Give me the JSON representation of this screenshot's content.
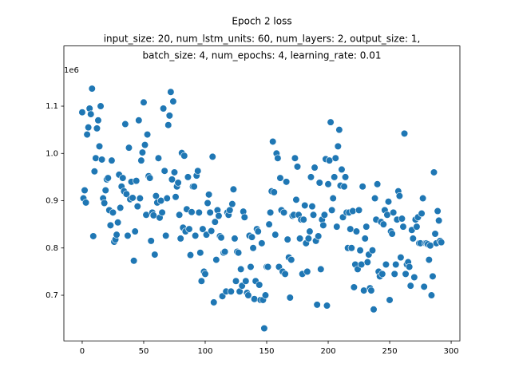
{
  "chart_data": {
    "type": "scatter",
    "title": "Epoch 2 loss",
    "subtitle": [
      "input_size: 20, num_lstm_units: 60, num_layers: 2, output_size: 1,",
      "batch_size: 4, num_epochs: 4, learning_rate: 0.01"
    ],
    "y_offset_label": "1e6",
    "color": "#1f77b4",
    "xlim": [
      -14.9,
      307.1
    ],
    "ylim": [
      0.6035,
      1.2273
    ],
    "xticks": [
      0,
      50,
      100,
      150,
      200,
      250,
      300
    ],
    "yticks": [
      0.7,
      0.8,
      0.9,
      {
        "value": 1,
        "label": "1.0"
      },
      1.1
    ],
    "x": [
      0,
      1,
      2,
      3,
      4,
      5,
      6,
      7,
      8,
      9,
      10,
      11,
      12,
      13,
      14,
      15,
      16,
      17,
      18,
      19,
      20,
      21,
      22,
      23,
      24,
      25,
      26,
      27,
      28,
      29,
      30,
      31,
      32,
      33,
      34,
      35,
      36,
      37,
      38,
      39,
      40,
      41,
      42,
      43,
      44,
      45,
      46,
      47,
      48,
      49,
      50,
      51,
      52,
      53,
      54,
      55,
      56,
      57,
      58,
      59,
      60,
      61,
      62,
      63,
      64,
      65,
      66,
      67,
      68,
      69,
      70,
      71,
      72,
      73,
      74,
      75,
      76,
      77,
      78,
      79,
      80,
      81,
      82,
      83,
      84,
      85,
      86,
      87,
      88,
      89,
      90,
      91,
      92,
      93,
      94,
      95,
      96,
      97,
      98,
      99,
      100,
      101,
      102,
      103,
      104,
      105,
      106,
      107,
      108,
      109,
      110,
      111,
      112,
      113,
      114,
      115,
      116,
      117,
      118,
      119,
      120,
      121,
      122,
      123,
      124,
      125,
      126,
      127,
      128,
      129,
      130,
      131,
      132,
      133,
      134,
      135,
      136,
      137,
      138,
      139,
      140,
      141,
      142,
      143,
      144,
      145,
      146,
      147,
      148,
      149,
      150,
      151,
      152,
      153,
      154,
      155,
      156,
      157,
      158,
      159,
      160,
      161,
      162,
      163,
      164,
      165,
      166,
      167,
      168,
      169,
      170,
      171,
      172,
      173,
      174,
      175,
      176,
      177,
      178,
      179,
      180,
      181,
      182,
      183,
      184,
      185,
      186,
      187,
      188,
      189,
      190,
      191,
      192,
      193,
      194,
      195,
      196,
      197,
      198,
      199,
      200,
      201,
      202,
      203,
      204,
      205,
      206,
      207,
      208,
      209,
      210,
      211,
      212,
      213,
      214,
      215,
      216,
      217,
      218,
      219,
      220,
      221,
      222,
      223,
      224,
      225,
      226,
      227,
      228,
      229,
      230,
      231,
      232,
      233,
      234,
      235,
      236,
      237,
      238,
      239,
      240,
      241,
      242,
      243,
      244,
      245,
      246,
      247,
      248,
      249,
      250,
      251,
      252,
      253,
      254,
      255,
      256,
      257,
      258,
      259,
      260,
      261,
      262,
      263,
      264,
      265,
      266,
      267,
      268,
      269,
      270,
      271,
      272,
      273,
      274,
      275,
      276,
      277,
      278,
      279,
      280,
      281,
      282,
      283,
      284,
      285,
      286,
      287,
      288,
      289,
      290,
      291,
      292
    ],
    "values": [
      1.087,
      0.905,
      0.922,
      0.896,
      1.04,
      1.055,
      1.095,
      1.083,
      1.137,
      0.825,
      0.962,
      0.99,
      1.053,
      1.07,
      1.015,
      1.1,
      0.987,
      0.905,
      0.895,
      0.922,
      0.945,
      0.948,
      0.88,
      0.848,
      0.985,
      0.875,
      0.813,
      0.818,
      0.828,
      0.854,
      0.955,
      0.885,
      0.93,
      0.948,
      0.92,
      1.062,
      0.914,
      0.826,
      1.012,
      0.903,
      0.94,
      0.906,
      0.773,
      0.835,
      0.942,
      0.888,
      1.07,
      0.905,
      0.985,
      1.002,
      1.108,
      1.018,
      0.87,
      1.04,
      0.952,
      0.948,
      0.815,
      0.875,
      0.869,
      0.786,
      0.91,
      0.896,
      0.99,
      0.864,
      0.9,
      0.875,
      1.095,
      0.963,
      0.826,
      0.905,
      1.06,
      1.08,
      1.13,
      0.945,
      1.11,
      0.96,
      0.908,
      0.93,
      0.938,
      0.87,
      0.82,
      1.001,
      0.843,
      0.995,
      0.835,
      0.882,
      0.95,
      0.84,
      0.785,
      0.876,
      0.93,
      0.93,
      0.826,
      0.953,
      0.963,
      0.875,
      0.79,
      0.73,
      0.84,
      0.75,
      0.745,
      0.828,
      0.895,
      0.913,
      0.875,
      0.836,
      0.993,
      0.685,
      0.855,
      0.775,
      0.88,
      0.868,
      0.825,
      0.822,
      0.698,
      0.79,
      0.792,
      0.708,
      0.875,
      0.87,
      0.88,
      0.708,
      0.893,
      0.924,
      0.82,
      0.73,
      0.792,
      0.79,
      0.708,
      0.755,
      0.72,
      0.877,
      0.865,
      0.73,
      0.705,
      0.7,
      0.826,
      0.76,
      0.823,
      0.8,
      0.692,
      0.73,
      0.84,
      0.835,
      0.722,
      0.69,
      0.81,
      0.69,
      0.63,
      0.7,
      0.76,
      0.76,
      0.85,
      0.875,
      0.92,
      1.025,
      0.918,
      0.828,
      1.0,
      0.99,
      0.76,
      0.948,
      0.88,
      0.75,
      0.875,
      0.745,
      0.94,
      0.818,
      0.78,
      0.695,
      0.775,
      0.868,
      0.87,
      0.99,
      0.902,
      0.972,
      0.87,
      0.82,
      0.86,
      0.745,
      0.86,
      0.89,
      0.81,
      0.75,
      0.82,
      0.835,
      0.95,
      0.888,
      0.87,
      0.97,
      0.815,
      0.68,
      0.825,
      0.938,
      0.755,
      0.86,
      0.848,
      0.87,
      0.988,
      0.678,
      0.935,
      0.985,
      1.066,
      0.88,
      0.905,
      0.95,
      0.99,
      0.845,
      1.015,
      1.05,
      0.932,
      0.966,
      0.865,
      0.93,
      0.95,
      0.875,
      0.8,
      0.875,
      0.84,
      0.8,
      0.878,
      0.717,
      0.765,
      0.835,
      0.755,
      0.88,
      0.795,
      0.765,
      0.93,
      0.71,
      0.82,
      0.845,
      0.77,
      0.786,
      0.715,
      0.71,
      0.795,
      0.67,
      0.905,
      0.86,
      0.935,
      0.75,
      0.74,
      0.855,
      0.745,
      0.85,
      0.88,
      0.765,
      0.87,
      0.898,
      0.69,
      0.835,
      0.83,
      0.875,
      0.745,
      0.765,
      0.86,
      0.92,
      0.91,
      0.78,
      0.862,
      0.845,
      1.042,
      0.745,
      0.765,
      0.77,
      0.76,
      0.72,
      0.838,
      0.82,
      0.738,
      0.86,
      0.845,
      0.865,
      0.81,
      0.81,
      0.873,
      0.905,
      0.718,
      0.81,
      0.81,
      0.808,
      0.775,
      0.805,
      0.7,
      0.74,
      0.96,
      0.83,
      0.81,
      0.878,
      0.858,
      0.815,
      0.812
    ]
  }
}
